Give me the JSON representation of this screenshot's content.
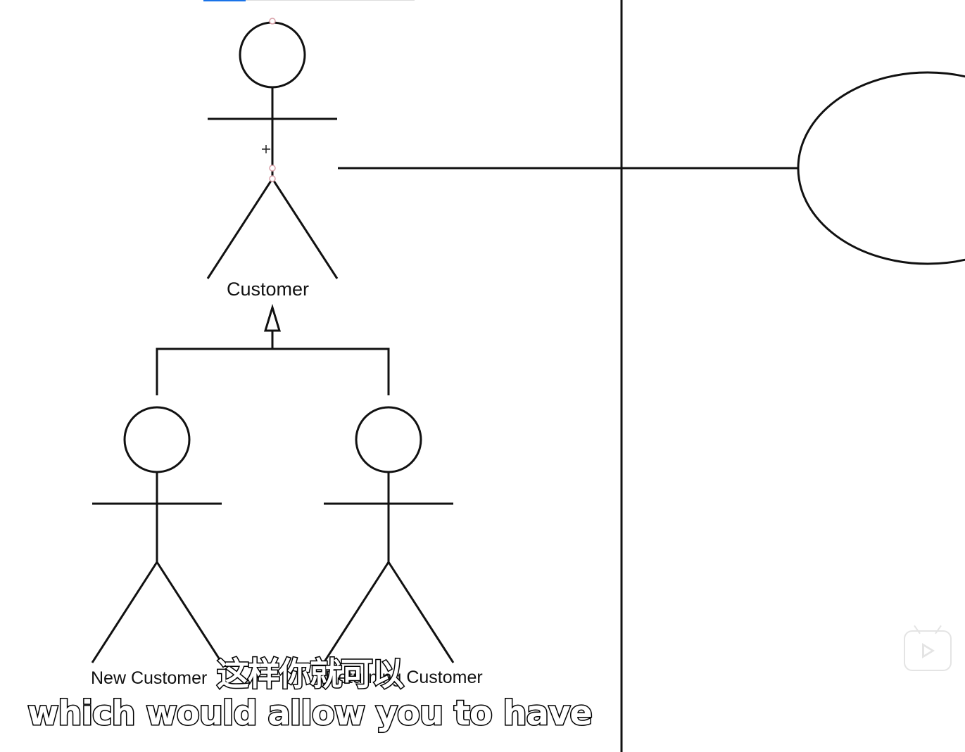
{
  "actors": {
    "parent_label": "Customer",
    "child_left_label": "New Customer",
    "child_right_label": "Returning Customer"
  },
  "subtitles": {
    "chinese": "这样你就可以",
    "english": "which would allow you to have"
  },
  "colors": {
    "stroke": "#111111",
    "selection_handle": "#d9a0a8",
    "toolbar_accent": "#1a73e8",
    "watermark": "#e4e4e4"
  },
  "icons": {
    "play": "bilibili-play-icon",
    "move_cursor": "move-cursor-icon"
  }
}
